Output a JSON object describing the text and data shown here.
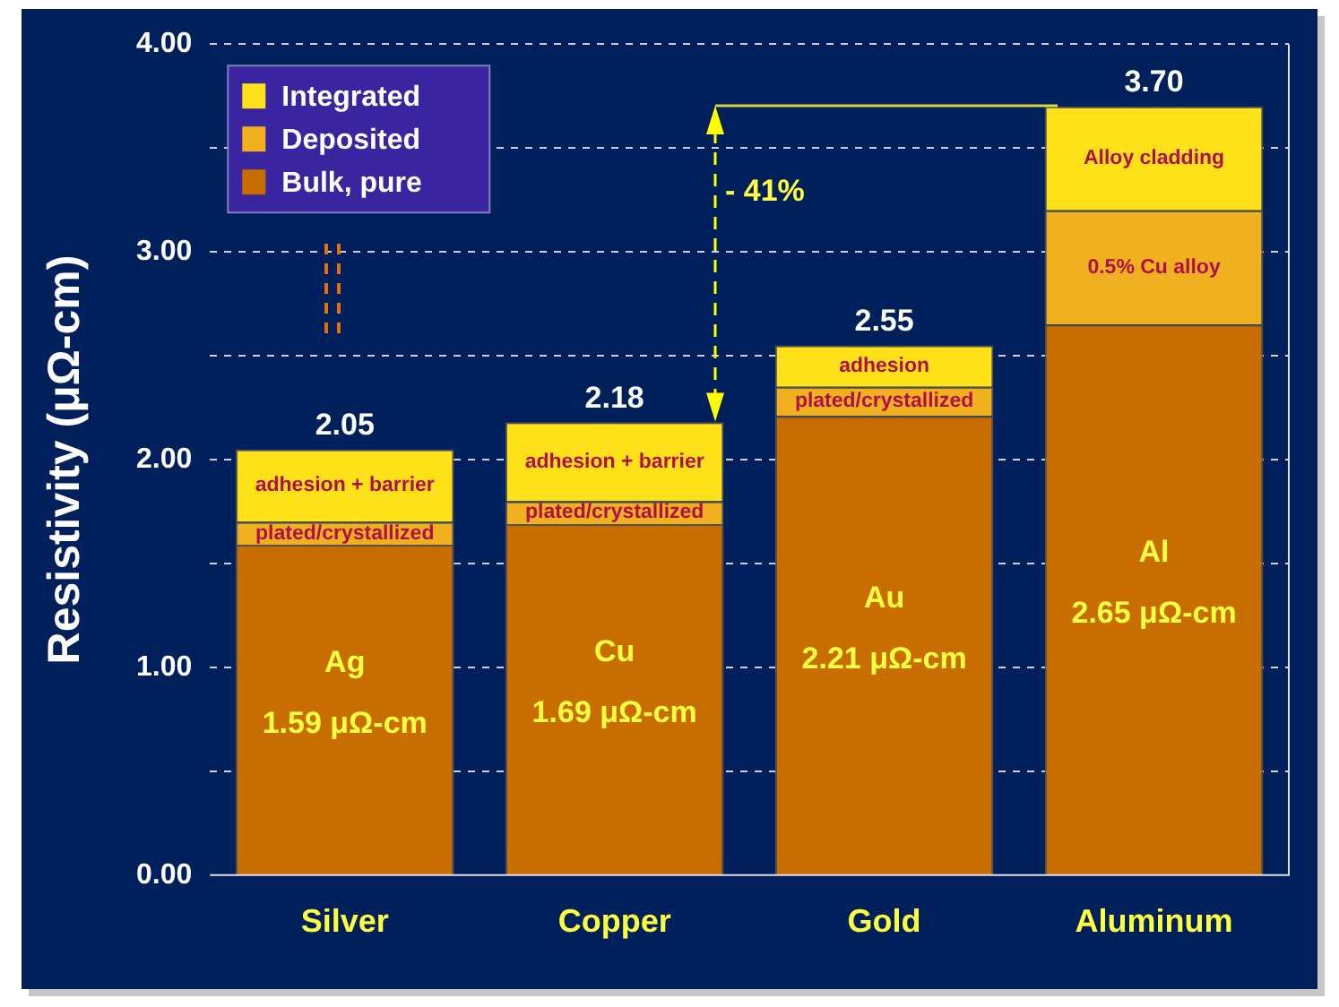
{
  "chart_data": {
    "type": "bar",
    "stacked": true,
    "ylabel": "Resistivity (μΩ-cm)",
    "categories": [
      "Silver",
      "Copper",
      "Gold",
      "Aluminum"
    ],
    "series": [
      {
        "name": "Bulk, pure",
        "color": "#c86e00",
        "values": [
          1.59,
          1.69,
          2.21,
          2.65
        ]
      },
      {
        "name": "Deposited",
        "color": "#f0b020",
        "values": [
          0.11,
          0.11,
          0.14,
          0.55
        ]
      },
      {
        "name": "Integrated",
        "color": "#ffe11a",
        "values": [
          0.35,
          0.38,
          0.2,
          0.5
        ]
      }
    ],
    "totals": [
      "2.05",
      "2.18",
      "2.55",
      "3.70"
    ],
    "ylim": [
      0,
      4
    ],
    "yticks": [
      {
        "value": 0,
        "label": "0.00"
      },
      {
        "value": 0.5,
        "label": null
      },
      {
        "value": 1,
        "label": "1.00"
      },
      {
        "value": 1.5,
        "label": null
      },
      {
        "value": 2,
        "label": "2.00"
      },
      {
        "value": 2.5,
        "label": null
      },
      {
        "value": 3,
        "label": "3.00"
      },
      {
        "value": 3.5,
        "label": null
      },
      {
        "value": 4,
        "label": "4.00"
      }
    ],
    "grid": "y",
    "legend": "top left",
    "annotations": [
      "adhesion + barrier",
      "plated/crystallized",
      "Ag",
      "1.59 μΩ-cm",
      "adhesion + barrier",
      "plated/crystallized",
      "Cu",
      "1.69 μΩ-cm",
      "adhesion",
      "plated/crystallized",
      "Au",
      "2.21 μΩ-cm",
      "Alloy cladding",
      "0.5% Cu alloy",
      "Al",
      "2.65 μΩ-cm",
      "- 41%"
    ]
  }
}
